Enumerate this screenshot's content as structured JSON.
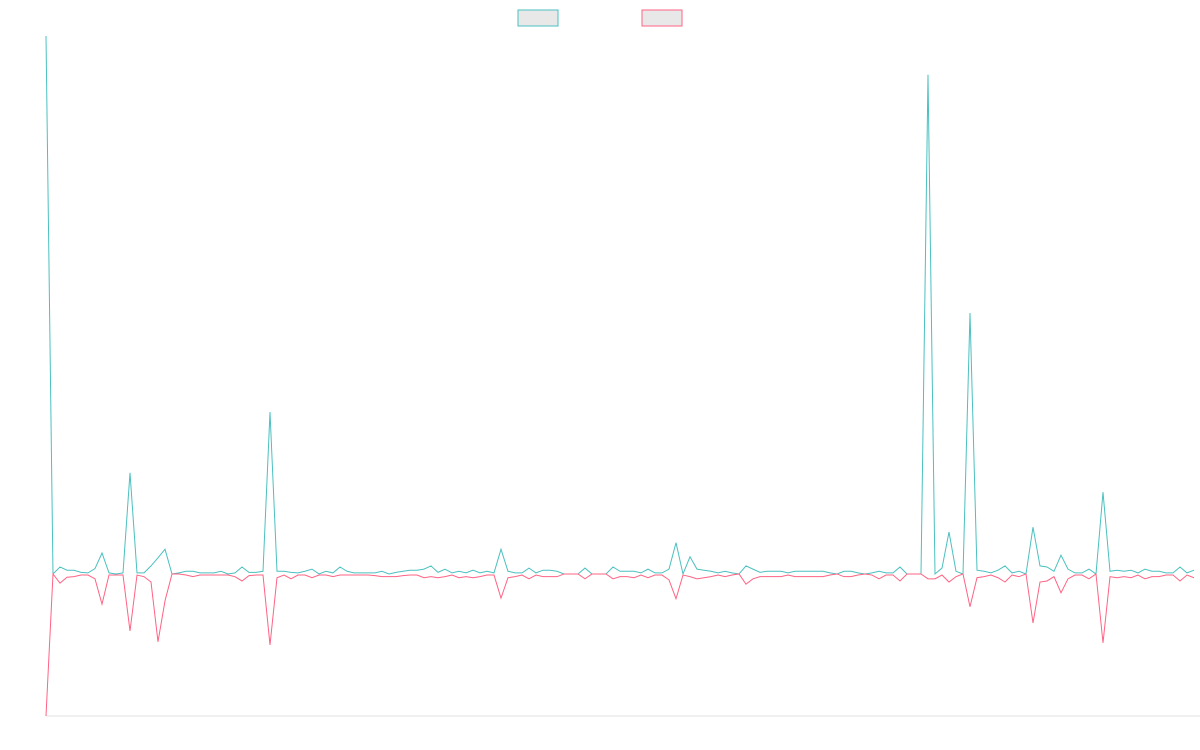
{
  "chart_data": {
    "type": "line",
    "legend": "top",
    "ylim": [
      -26.4,
      100
    ],
    "series": [
      {
        "color": "#4bc0c0",
        "values": [
          100,
          0,
          1.3,
          0.7,
          0.7,
          0.3,
          0.2,
          1.0,
          3.9,
          0.2,
          0,
          0.2,
          18.8,
          0.2,
          0.2,
          1.5,
          3,
          4.6,
          0,
          0.2,
          0.5,
          0.5,
          0.2,
          0.2,
          0.2,
          0.5,
          0,
          0.2,
          1.3,
          0.3,
          0.3,
          0.5,
          30.1,
          0.5,
          0.5,
          0.3,
          0.2,
          0.5,
          0.9,
          0,
          0.5,
          0.2,
          1.3,
          0.5,
          0.2,
          0.2,
          0.2,
          0.2,
          0.5,
          0,
          0.3,
          0.5,
          0.7,
          0.7,
          0.9,
          1.5,
          0.3,
          0.9,
          0.2,
          0.5,
          0.2,
          0.7,
          0.2,
          0.5,
          0.2,
          4.6,
          0.5,
          0.2,
          0.2,
          1.1,
          0.2,
          0.7,
          0.7,
          0.5,
          0,
          0,
          0,
          1.1,
          0,
          0,
          0,
          1.3,
          0.5,
          0.5,
          0.5,
          0.2,
          0.9,
          0.2,
          0.2,
          0.9,
          5.8,
          0,
          3.2,
          0.9,
          0.7,
          0.5,
          0.2,
          0.5,
          0.2,
          0,
          1.5,
          0.9,
          0.3,
          0.5,
          0.5,
          0.5,
          0.2,
          0.5,
          0.5,
          0.5,
          0.5,
          0.5,
          0.2,
          0,
          0.5,
          0.5,
          0.2,
          0,
          0.2,
          0.5,
          0.2,
          0.2,
          1.3,
          0,
          0,
          0,
          92.8,
          0,
          1.1,
          7.8,
          0.5,
          0,
          48.5,
          0.7,
          0.5,
          0.2,
          0.7,
          1.5,
          0.2,
          0.5,
          0,
          8.7,
          1.5,
          1.3,
          0.5,
          3.5,
          0.9,
          0.2,
          0.2,
          0.9,
          0,
          15.2,
          0.5,
          0.7,
          0.5,
          0.7,
          0.2,
          0.9,
          0.5,
          0.5,
          0.2,
          0.2,
          1.3,
          0.2,
          0.7
        ]
      },
      {
        "color": "#ff6384",
        "values": [
          -26.4,
          0,
          -1.7,
          -0.6,
          -0.5,
          -0.2,
          -0.2,
          -0.9,
          -5.6,
          -0.2,
          -0.2,
          -0.2,
          -10.6,
          -0.2,
          -0.5,
          -1.5,
          -12.6,
          -5,
          0,
          0,
          -0.2,
          -0.5,
          -0.2,
          -0.2,
          -0.2,
          -0.2,
          -0.2,
          -0.5,
          -1.3,
          -0.3,
          -0.2,
          -0.2,
          -13.2,
          -0.7,
          -0.2,
          -0.9,
          -0.2,
          -0.2,
          -0.7,
          -0.2,
          -0.2,
          -0.5,
          -0.2,
          -0.2,
          -0.2,
          -0.2,
          -0.2,
          -0.3,
          -0.5,
          -0.5,
          -0.5,
          -0.3,
          -0.2,
          -0.2,
          -0.7,
          -0.5,
          -0.7,
          -0.5,
          -0.2,
          -0.7,
          -0.5,
          -0.7,
          -0.5,
          -0.2,
          -0.2,
          -4.5,
          -0.7,
          -0.5,
          -0.2,
          -0.9,
          -0.2,
          -0.5,
          -0.5,
          -0.5,
          0,
          0,
          0,
          -0.9,
          0,
          0,
          0,
          -0.9,
          -0.5,
          -0.5,
          -0.7,
          -0.2,
          -0.7,
          -0.2,
          -0.2,
          -1.1,
          -4.6,
          -0.2,
          -0.5,
          -0.9,
          -0.7,
          -0.5,
          -0.2,
          -0.5,
          -0.2,
          0,
          -1.9,
          -0.9,
          -0.5,
          -0.5,
          -0.5,
          -0.5,
          -0.2,
          -0.5,
          -0.5,
          -0.5,
          -0.5,
          -0.5,
          -0.2,
          0,
          -0.5,
          -0.5,
          -0.2,
          0,
          -0.2,
          -0.9,
          -0.2,
          -0.2,
          -1.3,
          0,
          0,
          0,
          -0.9,
          -0.9,
          -0.2,
          -1.5,
          -0.5,
          0,
          -6.1,
          -0.7,
          -0.5,
          -0.2,
          -0.7,
          -1.5,
          -0.2,
          -0.5,
          0,
          -9.1,
          -1.5,
          -1.3,
          -0.5,
          -3.5,
          -0.9,
          -0.2,
          -0.2,
          -0.9,
          0,
          -12.8,
          -0.5,
          -0.7,
          -0.5,
          -0.7,
          -0.2,
          -0.9,
          -0.5,
          -0.5,
          -0.2,
          -0.2,
          -1.3,
          -0.2,
          -0.7
        ]
      }
    ]
  }
}
